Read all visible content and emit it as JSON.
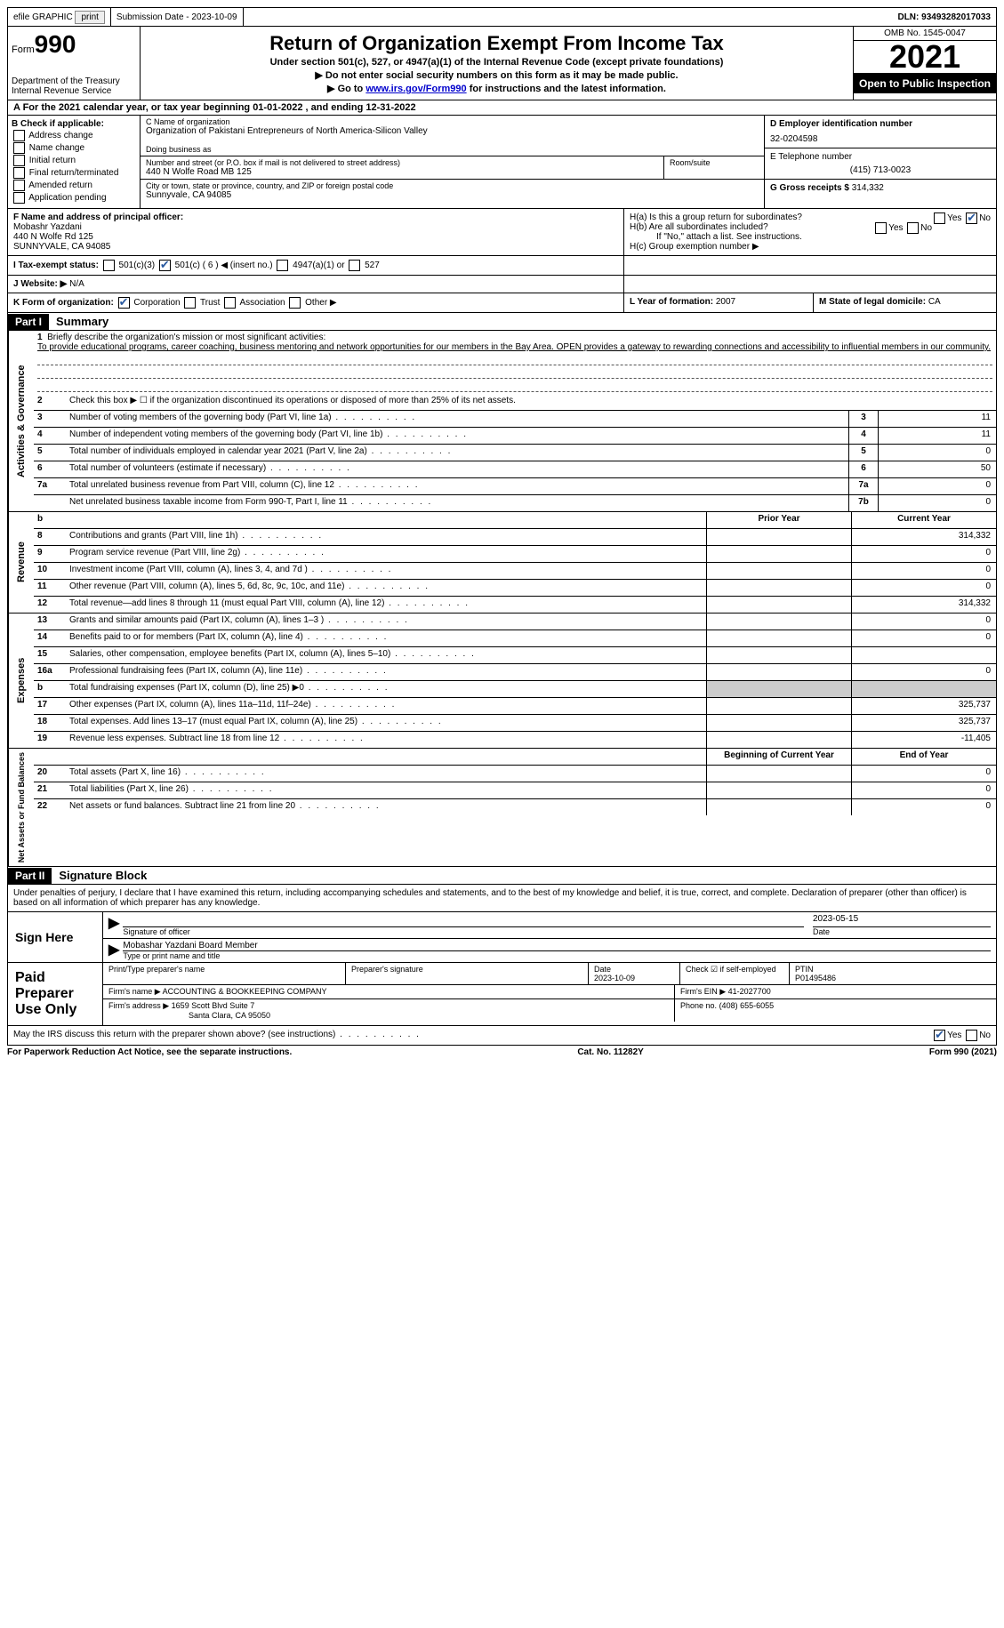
{
  "topbar": {
    "efile": "efile GRAPHIC",
    "print": "print",
    "submission": "Submission Date - 2023-10-09",
    "dln": "DLN: 93493282017033"
  },
  "header": {
    "form_label": "Form",
    "form_number": "990",
    "dept": "Department of the Treasury",
    "irs": "Internal Revenue Service",
    "title": "Return of Organization Exempt From Income Tax",
    "subtitle": "Under section 501(c), 527, or 4947(a)(1) of the Internal Revenue Code (except private foundations)",
    "note1": "▶ Do not enter social security numbers on this form as it may be made public.",
    "note2_pre": "▶ Go to ",
    "note2_link": "www.irs.gov/Form990",
    "note2_post": " for instructions and the latest information.",
    "omb": "OMB No. 1545-0047",
    "year": "2021",
    "open": "Open to Public Inspection"
  },
  "section_a": "A For the 2021 calendar year, or tax year beginning 01-01-2022    , and ending 12-31-2022",
  "col_b": {
    "title": "B Check if applicable:",
    "items": [
      "Address change",
      "Name change",
      "Initial return",
      "Final return/terminated",
      "Amended return",
      "Application pending"
    ]
  },
  "col_c": {
    "name_lbl": "C Name of organization",
    "name": "Organization of Pakistani Entrepreneurs of North America-Silicon Valley",
    "dba_lbl": "Doing business as",
    "dba": "",
    "addr_lbl": "Number and street (or P.O. box if mail is not delivered to street address)",
    "room_lbl": "Room/suite",
    "addr": "440 N Wolfe Road MB 125",
    "city_lbl": "City or town, state or province, country, and ZIP or foreign postal code",
    "city": "Sunnyvale, CA   94085"
  },
  "col_d": {
    "ein_lbl": "D Employer identification number",
    "ein": "32-0204598",
    "tel_lbl": "E Telephone number",
    "tel": "(415) 713-0023",
    "gross_lbl": "G Gross receipts $",
    "gross": "314,332"
  },
  "row_f": {
    "f_lbl": "F  Name and address of principal officer:",
    "f_name": "Mobashr Yazdani",
    "f_addr1": "440 N Wolfe Rd 125",
    "f_addr2": "SUNNYVALE, CA  94085",
    "h_a": "H(a)  Is this a group return for subordinates?",
    "h_b": "H(b)  Are all subordinates included?",
    "h_b_note": "If \"No,\" attach a list. See instructions.",
    "h_c": "H(c)  Group exemption number ▶",
    "yes": "Yes",
    "no": "No"
  },
  "row_i": {
    "label": "I   Tax-exempt status:",
    "opts": [
      "501(c)(3)",
      "501(c) ( 6 ) ◀ (insert no.)",
      "4947(a)(1) or",
      "527"
    ]
  },
  "row_j": {
    "label": "J   Website: ▶",
    "value": "N/A"
  },
  "row_k": {
    "label": "K Form of organization:",
    "opts": [
      "Corporation",
      "Trust",
      "Association",
      "Other ▶"
    ],
    "l_label": "L Year of formation:",
    "l_val": "2007",
    "m_label": "M State of legal domicile:",
    "m_val": "CA"
  },
  "part1": {
    "header": "Part I",
    "title": "Summary",
    "line1_lbl": "Briefly describe the organization's mission or most significant activities:",
    "mission": "To provide educational programs, career coaching, business mentoring and network opportunities for our members in the Bay Area. OPEN provides a gateway to rewarding connections and accessibility to influential members in our community.",
    "line2": "Check this box ▶ ☐  if the organization discontinued its operations or disposed of more than 25% of its net assets.",
    "lines_gov": [
      {
        "n": "3",
        "d": "Number of voting members of the governing body (Part VI, line 1a)",
        "b": "3",
        "v": "11"
      },
      {
        "n": "4",
        "d": "Number of independent voting members of the governing body (Part VI, line 1b)",
        "b": "4",
        "v": "11"
      },
      {
        "n": "5",
        "d": "Total number of individuals employed in calendar year 2021 (Part V, line 2a)",
        "b": "5",
        "v": "0"
      },
      {
        "n": "6",
        "d": "Total number of volunteers (estimate if necessary)",
        "b": "6",
        "v": "50"
      },
      {
        "n": "7a",
        "d": "Total unrelated business revenue from Part VIII, column (C), line 12",
        "b": "7a",
        "v": "0"
      },
      {
        "n": "",
        "d": "Net unrelated business taxable income from Form 990-T, Part I, line 11",
        "b": "7b",
        "v": "0"
      }
    ],
    "prior": "Prior Year",
    "current": "Current Year",
    "lines_rev": [
      {
        "n": "8",
        "d": "Contributions and grants (Part VIII, line 1h)",
        "p": "",
        "c": "314,332"
      },
      {
        "n": "9",
        "d": "Program service revenue (Part VIII, line 2g)",
        "p": "",
        "c": "0"
      },
      {
        "n": "10",
        "d": "Investment income (Part VIII, column (A), lines 3, 4, and 7d )",
        "p": "",
        "c": "0"
      },
      {
        "n": "11",
        "d": "Other revenue (Part VIII, column (A), lines 5, 6d, 8c, 9c, 10c, and 11e)",
        "p": "",
        "c": "0"
      },
      {
        "n": "12",
        "d": "Total revenue—add lines 8 through 11 (must equal Part VIII, column (A), line 12)",
        "p": "",
        "c": "314,332"
      }
    ],
    "lines_exp": [
      {
        "n": "13",
        "d": "Grants and similar amounts paid (Part IX, column (A), lines 1–3 )",
        "p": "",
        "c": "0"
      },
      {
        "n": "14",
        "d": "Benefits paid to or for members (Part IX, column (A), line 4)",
        "p": "",
        "c": "0"
      },
      {
        "n": "15",
        "d": "Salaries, other compensation, employee benefits (Part IX, column (A), lines 5–10)",
        "p": "",
        "c": ""
      },
      {
        "n": "16a",
        "d": "Professional fundraising fees (Part IX, column (A), line 11e)",
        "p": "",
        "c": "0"
      },
      {
        "n": "b",
        "d": "Total fundraising expenses (Part IX, column (D), line 25) ▶0",
        "p": "shaded",
        "c": "shaded"
      },
      {
        "n": "17",
        "d": "Other expenses (Part IX, column (A), lines 11a–11d, 11f–24e)",
        "p": "",
        "c": "325,737"
      },
      {
        "n": "18",
        "d": "Total expenses. Add lines 13–17 (must equal Part IX, column (A), line 25)",
        "p": "",
        "c": "325,737"
      },
      {
        "n": "19",
        "d": "Revenue less expenses. Subtract line 18 from line 12",
        "p": "",
        "c": "-11,405"
      }
    ],
    "begin": "Beginning of Current Year",
    "end": "End of Year",
    "lines_net": [
      {
        "n": "20",
        "d": "Total assets (Part X, line 16)",
        "p": "",
        "c": "0"
      },
      {
        "n": "21",
        "d": "Total liabilities (Part X, line 26)",
        "p": "",
        "c": "0"
      },
      {
        "n": "22",
        "d": "Net assets or fund balances. Subtract line 21 from line 20",
        "p": "",
        "c": "0"
      }
    ],
    "side_gov": "Activities & Governance",
    "side_rev": "Revenue",
    "side_exp": "Expenses",
    "side_net": "Net Assets or Fund Balances"
  },
  "part2": {
    "header": "Part II",
    "title": "Signature Block",
    "declaration": "Under penalties of perjury, I declare that I have examined this return, including accompanying schedules and statements, and to the best of my knowledge and belief, it is true, correct, and complete. Declaration of preparer (other than officer) is based on all information of which preparer has any knowledge.",
    "sign_here": "Sign Here",
    "sig_officer": "Signature of officer",
    "sig_date": "2023-05-15",
    "date_lbl": "Date",
    "typed_name": "Mobashar Yazdani Board Member",
    "typed_lbl": "Type or print name and title",
    "paid": "Paid Preparer Use Only",
    "prep_name_lbl": "Print/Type preparer's name",
    "prep_sig_lbl": "Preparer's signature",
    "prep_date_lbl": "Date",
    "prep_date": "2023-10-09",
    "check_self": "Check ☑ if self-employed",
    "ptin_lbl": "PTIN",
    "ptin": "P01495486",
    "firm_name_lbl": "Firm's name    ▶",
    "firm_name": "ACCOUNTING & BOOKKEEPING COMPANY",
    "firm_ein_lbl": "Firm's EIN ▶",
    "firm_ein": "41-2027700",
    "firm_addr_lbl": "Firm's address ▶",
    "firm_addr1": "1659 Scott Blvd Suite 7",
    "firm_addr2": "Santa Clara, CA  95050",
    "phone_lbl": "Phone no.",
    "phone": "(408) 655-6055",
    "discuss": "May the IRS discuss this return with the preparer shown above? (see instructions)",
    "yes": "Yes",
    "no": "No"
  },
  "footer": {
    "left": "For Paperwork Reduction Act Notice, see the separate instructions.",
    "center": "Cat. No. 11282Y",
    "right": "Form 990 (2021)"
  }
}
